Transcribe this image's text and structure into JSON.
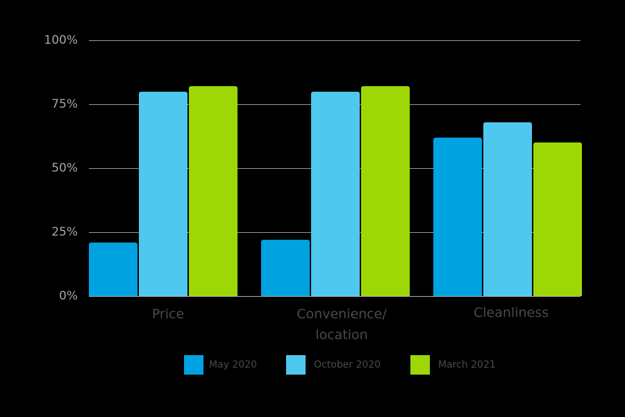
{
  "chart_data": {
    "type": "bar",
    "title": "",
    "xlabel": "",
    "ylabel": "",
    "ylim": [
      0,
      100
    ],
    "y_ticks": [
      "0%",
      "25%",
      "50%",
      "75%",
      "100%"
    ],
    "grid": true,
    "legend_position": "bottom",
    "categories": [
      "Price",
      "Convenience/ location",
      "Cleanliness"
    ],
    "series": [
      {
        "name": "May 2020",
        "color": "#00a2e0",
        "values": [
          21,
          22,
          62
        ]
      },
      {
        "name": "October 2020",
        "color": "#4fc8f0",
        "values": [
          80,
          80,
          68
        ]
      },
      {
        "name": "March 2021",
        "color": "#9dd806",
        "values": [
          82,
          82,
          60
        ]
      }
    ]
  },
  "axis": {
    "y0": "0%",
    "y25": "25%",
    "y50": "50%",
    "y75": "75%",
    "y100": "100%"
  },
  "categories": {
    "c0": "Price",
    "c1_line1": "Convenience/",
    "c1_line2": "location",
    "c2": "Cleanliness"
  },
  "legend": {
    "s0": "May 2020",
    "s1": "October 2020",
    "s2": "March 2021"
  }
}
